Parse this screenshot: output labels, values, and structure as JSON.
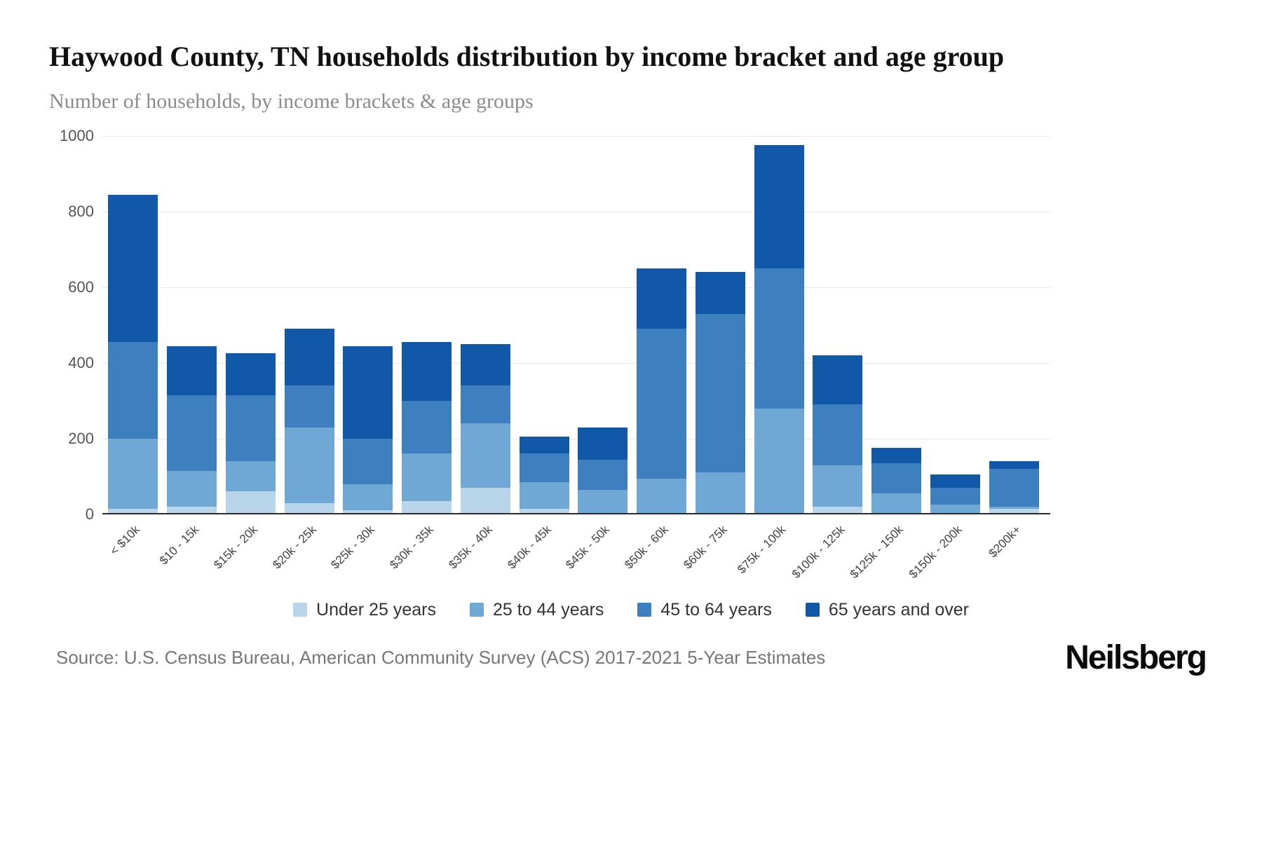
{
  "title": "Haywood County, TN households distribution by income bracket and age group",
  "subtitle": "Number of households, by income brackets & age groups",
  "source": "Source: U.S. Census Bureau, American Community Survey (ACS) 2017-2021 5-Year Estimates",
  "logo": "Neilsberg",
  "chart_data": {
    "type": "bar",
    "stacked": true,
    "title": "Haywood County, TN households distribution by income bracket and age group",
    "subtitle": "Number of households, by income brackets & age groups",
    "xlabel": "",
    "ylabel": "Number of households",
    "ylim": [
      0,
      1000
    ],
    "yticks": [
      0,
      200,
      400,
      600,
      800,
      1000
    ],
    "grid": true,
    "legend_position": "bottom",
    "categories": [
      "< $10k",
      "$10 - 15k",
      "$15k - 20k",
      "$20k - 25k",
      "$25k - 30k",
      "$30k - 35k",
      "$35k - 40k",
      "$40k - 45k",
      "$45k - 50k",
      "$50k - 60k",
      "$60k - 75k",
      "$75k - 100k",
      "$100k - 125k",
      "$125k - 150k",
      "$150k - 200k",
      "$200k+"
    ],
    "series": [
      {
        "name": "Under 25 years",
        "color": "#b9d5ea",
        "values": [
          15,
          20,
          60,
          30,
          10,
          35,
          70,
          15,
          0,
          0,
          0,
          0,
          20,
          0,
          0,
          15
        ]
      },
      {
        "name": "25 to 44 years",
        "color": "#6fa8d4",
        "values": [
          185,
          95,
          80,
          200,
          70,
          125,
          170,
          70,
          65,
          95,
          110,
          280,
          110,
          55,
          25,
          5
        ]
      },
      {
        "name": "45 to 64 years",
        "color": "#3d7fbf",
        "values": [
          255,
          200,
          175,
          110,
          120,
          140,
          100,
          75,
          80,
          395,
          420,
          370,
          160,
          80,
          45,
          100
        ]
      },
      {
        "name": "65 years and over",
        "color": "#1258a8",
        "values": [
          390,
          130,
          110,
          150,
          245,
          155,
          110,
          45,
          85,
          160,
          110,
          325,
          130,
          40,
          35,
          20
        ]
      }
    ],
    "totals": [
      845,
      445,
      425,
      490,
      445,
      455,
      450,
      205,
      230,
      650,
      640,
      975,
      420,
      175,
      105,
      140
    ]
  }
}
